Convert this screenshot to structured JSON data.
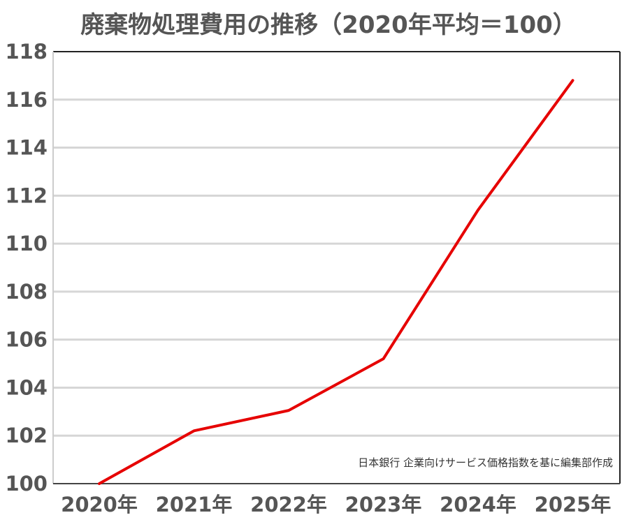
{
  "chart_data": {
    "type": "line",
    "title": "廃棄物処理費用の推移（2020年平均＝100）",
    "xlabel": "",
    "ylabel": "",
    "categories": [
      "2020年",
      "2021年",
      "2022年",
      "2023年",
      "2024年",
      "2025年"
    ],
    "series": [
      {
        "values": [
          100.0,
          102.2,
          103.05,
          105.2,
          111.4,
          116.8
        ],
        "color": "#e60000"
      }
    ],
    "ylim": [
      100,
      118
    ],
    "yticks": [
      "100",
      "102",
      "104",
      "106",
      "108",
      "110",
      "112",
      "114",
      "116",
      "118"
    ],
    "grid": true,
    "legend": "none",
    "annotation": "日本銀行 企業向けサービス価格指数を基に編集部作成"
  }
}
